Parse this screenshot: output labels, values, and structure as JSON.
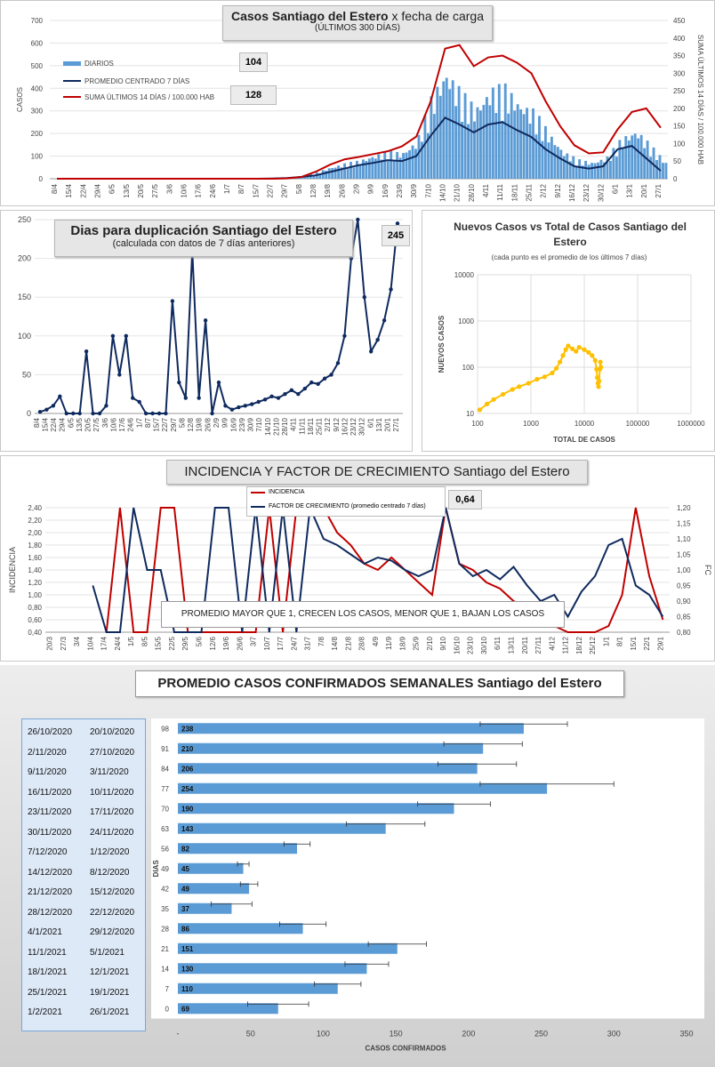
{
  "chart_data": [
    {
      "type": "bar",
      "title": "Casos Santiago del Estero",
      "title_suffix": "x fecha de carga",
      "subtitle": "(ÚLTIMOS 300 DÍAS)",
      "ylabel": "CASOS",
      "y2label": "SUMA  ÚLTIMOS 14 DÍAS / 100.000 HAB",
      "ylim": [
        0,
        700
      ],
      "y2lim": [
        0,
        450
      ],
      "yticks": [
        "0",
        "100",
        "200",
        "300",
        "400",
        "500",
        "600",
        "700"
      ],
      "y2ticks": [
        "0",
        "50",
        "100",
        "150",
        "200",
        "250",
        "300",
        "350",
        "400",
        "450"
      ],
      "x_labels": [
        "8/4",
        "15/4",
        "22/4",
        "29/4",
        "6/5",
        "13/5",
        "20/5",
        "27/5",
        "3/6",
        "10/6",
        "17/6",
        "24/6",
        "1/7",
        "8/7",
        "15/7",
        "22/7",
        "29/7",
        "5/8",
        "12/8",
        "19/8",
        "26/8",
        "2/9",
        "9/9",
        "16/9",
        "23/9",
        "30/9",
        "7/10",
        "14/10",
        "21/10",
        "28/10",
        "4/11",
        "11/11",
        "18/11",
        "25/11",
        "2/12",
        "9/12",
        "16/12",
        "23/12",
        "30/12",
        "6/1",
        "13/1",
        "20/1",
        "27/1"
      ],
      "legend": [
        "DIARIOS",
        "PROMEDIO CENTRADO 7 DÍAS",
        "SUMA ÚLTIMOS 14 DÍAS / 100.000 HAB"
      ],
      "notes": [
        "104",
        "128"
      ],
      "series": [
        {
          "name": "PROMEDIO CENTRADO 7 DÍAS",
          "values": [
            0,
            0,
            0,
            0,
            0,
            0,
            0,
            0,
            0,
            0,
            0,
            0,
            0,
            0,
            0,
            1,
            3,
            8,
            15,
            30,
            45,
            60,
            70,
            82,
            78,
            100,
            190,
            270,
            240,
            205,
            240,
            250,
            215,
            185,
            130,
            90,
            55,
            45,
            55,
            130,
            145,
            90,
            35
          ]
        },
        {
          "name": "SUMA ÚLTIMOS 14 DÍAS / 100.000 HAB",
          "values": [
            0,
            0,
            0,
            0,
            0,
            0,
            0,
            0,
            0,
            0,
            0,
            0,
            0,
            0,
            0,
            0,
            1,
            5,
            20,
            40,
            55,
            62,
            70,
            78,
            92,
            120,
            220,
            370,
            380,
            320,
            345,
            350,
            330,
            300,
            220,
            150,
            95,
            72,
            75,
            140,
            190,
            200,
            145
          ]
        },
        {
          "name": "DIARIOS",
          "values": [
            0,
            0,
            0,
            0,
            0,
            0,
            0,
            0,
            0,
            0,
            0,
            0,
            0,
            0,
            0,
            2,
            5,
            10,
            20,
            40,
            55,
            65,
            85,
            100,
            95,
            140,
            300,
            400,
            320,
            260,
            330,
            340,
            280,
            250,
            170,
            100,
            70,
            60,
            80,
            150,
            180,
            120,
            60
          ]
        }
      ]
    },
    {
      "type": "line",
      "title": "Dias para duplicación Santiago del Estero",
      "subtitle": "(calculada con datos de 7 días anteriores)",
      "note": "245",
      "ylim": [
        0,
        250
      ],
      "yticks": [
        "0",
        "50",
        "100",
        "150",
        "200",
        "250"
      ],
      "x_labels": [
        "8/4",
        "15/4",
        "22/4",
        "29/4",
        "6/5",
        "13/5",
        "20/5",
        "27/5",
        "3/6",
        "10/6",
        "17/6",
        "24/6",
        "1/7",
        "8/7",
        "15/7",
        "22/7",
        "29/7",
        "5/8",
        "12/8",
        "19/8",
        "26/8",
        "2/9",
        "9/9",
        "16/9",
        "23/9",
        "30/9",
        "7/10",
        "14/10",
        "21/10",
        "28/10",
        "4/11",
        "11/11",
        "18/11",
        "25/11",
        "2/12",
        "9/12",
        "16/12",
        "23/12",
        "30/12",
        "6/1",
        "13/1",
        "20/1",
        "27/1"
      ],
      "values": [
        2,
        5,
        10,
        22,
        0,
        0,
        0,
        80,
        0,
        0,
        10,
        100,
        50,
        100,
        20,
        15,
        0,
        0,
        0,
        0,
        145,
        40,
        20,
        210,
        20,
        120,
        0,
        40,
        10,
        5,
        8,
        10,
        12,
        15,
        18,
        22,
        20,
        25,
        30,
        25,
        32,
        40,
        38,
        45,
        50,
        65,
        100,
        200,
        250,
        150,
        80,
        95,
        120,
        160,
        245
      ]
    },
    {
      "type": "scatter",
      "title": "Nuevos Casos vs Total de Casos Santiago del Estero",
      "subtitle": "(cada punto es el promedio de los últimos 7 días)",
      "xlabel": "TOTAL DE CASOS",
      "ylabel": "NUEVOS CASOS",
      "xscale": "log",
      "yscale": "log",
      "xticks": [
        "100",
        "1000",
        "10000",
        "100000",
        "1000000"
      ],
      "yticks": [
        "10",
        "100",
        "1000",
        "10000"
      ],
      "points": [
        [
          110,
          12
        ],
        [
          150,
          16
        ],
        [
          200,
          20
        ],
        [
          300,
          26
        ],
        [
          450,
          33
        ],
        [
          600,
          38
        ],
        [
          900,
          45
        ],
        [
          1300,
          55
        ],
        [
          1800,
          62
        ],
        [
          2500,
          75
        ],
        [
          3000,
          95
        ],
        [
          3500,
          130
        ],
        [
          4000,
          180
        ],
        [
          4500,
          240
        ],
        [
          5000,
          290
        ],
        [
          6000,
          250
        ],
        [
          7000,
          220
        ],
        [
          8000,
          270
        ],
        [
          10000,
          240
        ],
        [
          12000,
          210
        ],
        [
          14000,
          180
        ],
        [
          16000,
          140
        ],
        [
          17000,
          90
        ],
        [
          17500,
          60
        ],
        [
          18000,
          45
        ],
        [
          18500,
          38
        ],
        [
          19000,
          50
        ],
        [
          19500,
          90
        ],
        [
          20000,
          130
        ],
        [
          20500,
          100
        ]
      ]
    },
    {
      "type": "line",
      "title": "INCIDENCIA Y FACTOR DE CRECIMIENTO",
      "title_suffix": "Santiago del Estero",
      "ylabel": "INCIDENCIA",
      "y2label": "FC",
      "legend": [
        "INCIDENCIA",
        "FACTOR DE CRECIMIENTO (promedio centrado 7 días)"
      ],
      "note": "0,64",
      "annotation": "PROMEDIO MAYOR QUE 1, CRECEN LOS CASOS, MENOR QUE 1, BAJAN LOS CASOS",
      "ylim": [
        0.4,
        2.4
      ],
      "y2lim": [
        0.8,
        1.2
      ],
      "yticks": [
        "0,40",
        "0,60",
        "0,80",
        "1,00",
        "1,20",
        "1,40",
        "1,60",
        "1,80",
        "2,00",
        "2,20",
        "2,40"
      ],
      "y2ticks": [
        "0,80",
        "0,85",
        "0,90",
        "0,95",
        "1,00",
        "1,05",
        "1,10",
        "1,15",
        "1,20"
      ],
      "x_labels": [
        "20/3",
        "27/3",
        "3/4",
        "10/4",
        "17/4",
        "24/4",
        "1/5",
        "8/5",
        "15/5",
        "22/5",
        "29/5",
        "5/6",
        "12/6",
        "19/6",
        "26/6",
        "3/7",
        "10/7",
        "17/7",
        "24/7",
        "31/7",
        "7/8",
        "14/8",
        "21/8",
        "28/8",
        "4/9",
        "11/9",
        "18/9",
        "25/9",
        "2/10",
        "9/10",
        "16/10",
        "23/10",
        "30/10",
        "6/11",
        "13/11",
        "20/11",
        "27/11",
        "4/12",
        "11/12",
        "18/12",
        "25/12",
        "1/1",
        "8/1",
        "15/1",
        "22/1",
        "29/1"
      ],
      "series": [
        {
          "name": "INCIDENCIA",
          "values": [
            null,
            null,
            null,
            null,
            0.4,
            2.4,
            0.4,
            0.4,
            2.4,
            2.4,
            0.4,
            0.4,
            0.4,
            0.4,
            0.4,
            0.4,
            2.4,
            0.4,
            2.4,
            2.4,
            2.4,
            2.0,
            1.8,
            1.5,
            1.4,
            1.6,
            1.4,
            1.2,
            1.0,
            2.4,
            1.5,
            1.4,
            1.2,
            1.1,
            0.9,
            0.8,
            0.9,
            0.5,
            0.4,
            0.4,
            0.4,
            0.5,
            1.0,
            2.4,
            1.3,
            0.6
          ]
        },
        {
          "name": "FACTOR DE CRECIMIENTO (promedio centrado 7 días)",
          "values": [
            null,
            null,
            null,
            0.95,
            0.8,
            0.8,
            1.2,
            1.0,
            1.0,
            0.8,
            0.8,
            0.8,
            1.2,
            1.2,
            0.8,
            1.2,
            0.8,
            1.2,
            0.8,
            1.2,
            1.1,
            1.08,
            1.05,
            1.02,
            1.04,
            1.03,
            1.0,
            0.98,
            1.0,
            1.2,
            1.02,
            0.98,
            1.0,
            0.97,
            1.01,
            0.95,
            0.9,
            0.92,
            0.85,
            0.93,
            0.98,
            1.08,
            1.1,
            0.95,
            0.92,
            0.85
          ]
        }
      ]
    },
    {
      "type": "bar",
      "orientation": "horizontal",
      "title": "PROMEDIO CASOS CONFIRMADOS SEMANALES",
      "title_suffix": "Santiago del Estero",
      "xlabel": "CASOS CONFIRMADOS",
      "ylabel": "DIAS",
      "xlim": [
        0,
        350
      ],
      "xticks": [
        "-",
        "50",
        "100",
        "150",
        "200",
        "250",
        "300",
        "350"
      ],
      "rows": [
        {
          "end": "26/10/2020",
          "start": "20/10/2020",
          "days": "98",
          "value": 238,
          "err": 30
        },
        {
          "end": "2/11/2020",
          "start": "27/10/2020",
          "days": "91",
          "value": 210,
          "err": 27
        },
        {
          "end": "9/11/2020",
          "start": "3/11/2020",
          "days": "84",
          "value": 206,
          "err": 27
        },
        {
          "end": "16/11/2020",
          "start": "10/11/2020",
          "days": "77",
          "value": 254,
          "err": 46
        },
        {
          "end": "23/11/2020",
          "start": "17/11/2020",
          "days": "70",
          "value": 190,
          "err": 25
        },
        {
          "end": "30/11/2020",
          "start": "24/11/2020",
          "days": "63",
          "value": 143,
          "err": 27
        },
        {
          "end": "7/12/2020",
          "start": "1/12/2020",
          "days": "56",
          "value": 82,
          "err": 9
        },
        {
          "end": "14/12/2020",
          "start": "8/12/2020",
          "days": "49",
          "value": 45,
          "err": 4
        },
        {
          "end": "21/12/2020",
          "start": "15/12/2020",
          "days": "42",
          "value": 49,
          "err": 6
        },
        {
          "end": "28/12/2020",
          "start": "22/12/2020",
          "days": "35",
          "value": 37,
          "err": 14
        },
        {
          "end": "4/1/2021",
          "start": "29/12/2020",
          "days": "28",
          "value": 86,
          "err": 16
        },
        {
          "end": "11/1/2021",
          "start": "5/1/2021",
          "days": "21",
          "value": 151,
          "err": 20
        },
        {
          "end": "18/1/2021",
          "start": "12/1/2021",
          "days": "14",
          "value": 130,
          "err": 15
        },
        {
          "end": "25/1/2021",
          "start": "19/1/2021",
          "days": "7",
          "value": 110,
          "err": 16
        },
        {
          "end": "1/2/2021",
          "start": "26/1/2021",
          "days": "0",
          "value": 69,
          "err": 21
        }
      ]
    }
  ],
  "colors": {
    "red": "#c00000",
    "navy": "#0f2a5e",
    "blue": "#5b9bd5",
    "yellow": "#ffc000"
  }
}
